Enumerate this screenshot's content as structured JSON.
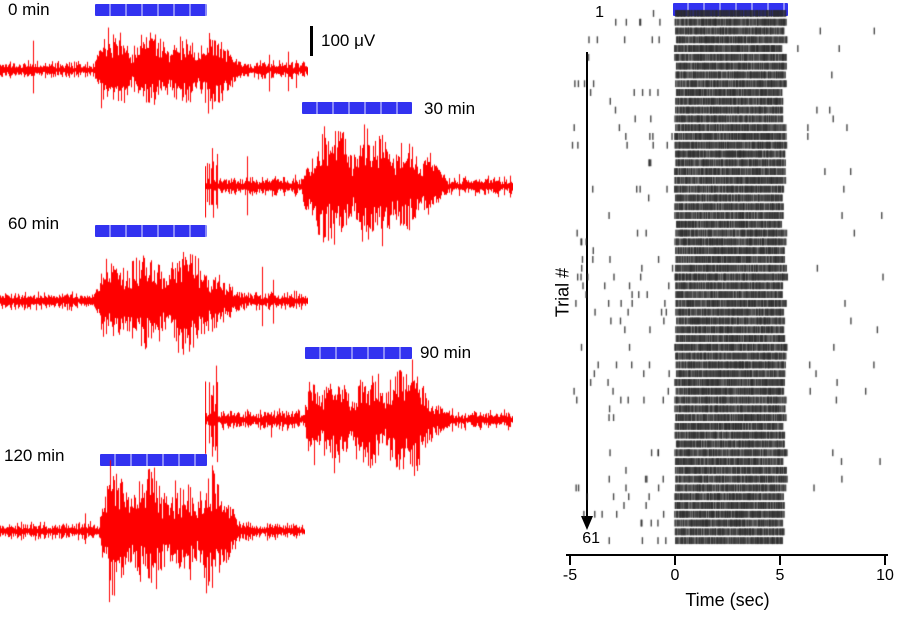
{
  "figure": {
    "left_panel": {
      "scale_bar_label": "100 μV",
      "traces": [
        {
          "label": "0 min"
        },
        {
          "label": "30 min"
        },
        {
          "label": "60 min"
        },
        {
          "label": "90 min"
        },
        {
          "label": "120 min"
        }
      ]
    },
    "right_panel": {
      "first_trial_label": "1",
      "last_trial_label": "61",
      "ylabel": "Trial #",
      "xlabel": "Time (sec)",
      "xtick_labels": [
        "-5",
        "0",
        "5",
        "10"
      ]
    }
  },
  "chart_data": [
    {
      "type": "line",
      "subtype": "extracellular-voltage-traces",
      "title": "Evoked multi-unit voltage traces over time",
      "traces": [
        {
          "label": "0 min",
          "stim_window_sec": [
            0,
            5
          ]
        },
        {
          "label": "30 min",
          "stim_window_sec": [
            0,
            5
          ]
        },
        {
          "label": "60 min",
          "stim_window_sec": [
            0,
            5
          ]
        },
        {
          "label": "90 min",
          "stim_window_sec": [
            0,
            5
          ]
        },
        {
          "label": "120 min",
          "stim_window_sec": [
            0,
            5
          ]
        }
      ],
      "scale_bar": {
        "value": 100,
        "unit": "μV"
      },
      "signal_color": "#ff0000",
      "stim_bar_color": "#3232f0",
      "description": "Red voltage traces: low-amplitude baseline noise with a high-amplitude spiking burst during the blue stimulus bar, shown at 0, 30, 60, 90 and 120 min."
    },
    {
      "type": "scatter",
      "subtype": "spike-raster",
      "ylabel": "Trial #",
      "xlabel": "Time (sec)",
      "xlim": [
        -5,
        10
      ],
      "xticks": [
        -5,
        0,
        5,
        10
      ],
      "trials": 61,
      "trial_axis": {
        "first": 1,
        "last": 61,
        "direction": "down"
      },
      "stim_window_sec": [
        0,
        5
      ],
      "baseline_rate_hz": 0.6,
      "stim_rate_hz": 25,
      "spike_color": "#3a3a3a",
      "stim_bar_color": "#3232f0"
    }
  ]
}
